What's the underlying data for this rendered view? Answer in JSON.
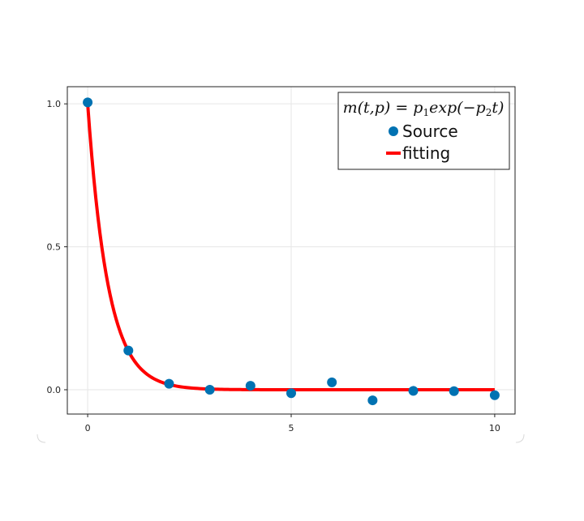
{
  "chart_data": {
    "type": "scatter",
    "title": "",
    "xlabel": "",
    "ylabel": "",
    "xlim": [
      -0.5,
      10.5
    ],
    "ylim": [
      -0.085,
      1.06
    ],
    "xticks": [
      0,
      5,
      10
    ],
    "xtick_labels": [
      "0",
      "5",
      "10"
    ],
    "yticks": [
      0.0,
      0.5,
      1.0
    ],
    "ytick_labels": [
      "0.0",
      "0.5",
      "1.0"
    ],
    "grid": true,
    "legend_position": "top-right",
    "series": [
      {
        "name": "Source",
        "kind": "scatter",
        "color": "#0072b2",
        "x": [
          0,
          1,
          2,
          3,
          4,
          5,
          6,
          7,
          8,
          9,
          10
        ],
        "y": [
          1.005,
          0.137,
          0.021,
          0.0,
          0.014,
          -0.012,
          0.026,
          -0.037,
          -0.004,
          -0.005,
          -0.019
        ]
      },
      {
        "name": "fitting",
        "kind": "line",
        "color": "#ff0000",
        "p1": 1.0,
        "p2": 2.0
      }
    ],
    "legend_title": {
      "lhs": "m(t,p) = p",
      "sub1": "1",
      "mid": "exp(−p",
      "sub2": "2",
      "rhs": "t)"
    }
  }
}
